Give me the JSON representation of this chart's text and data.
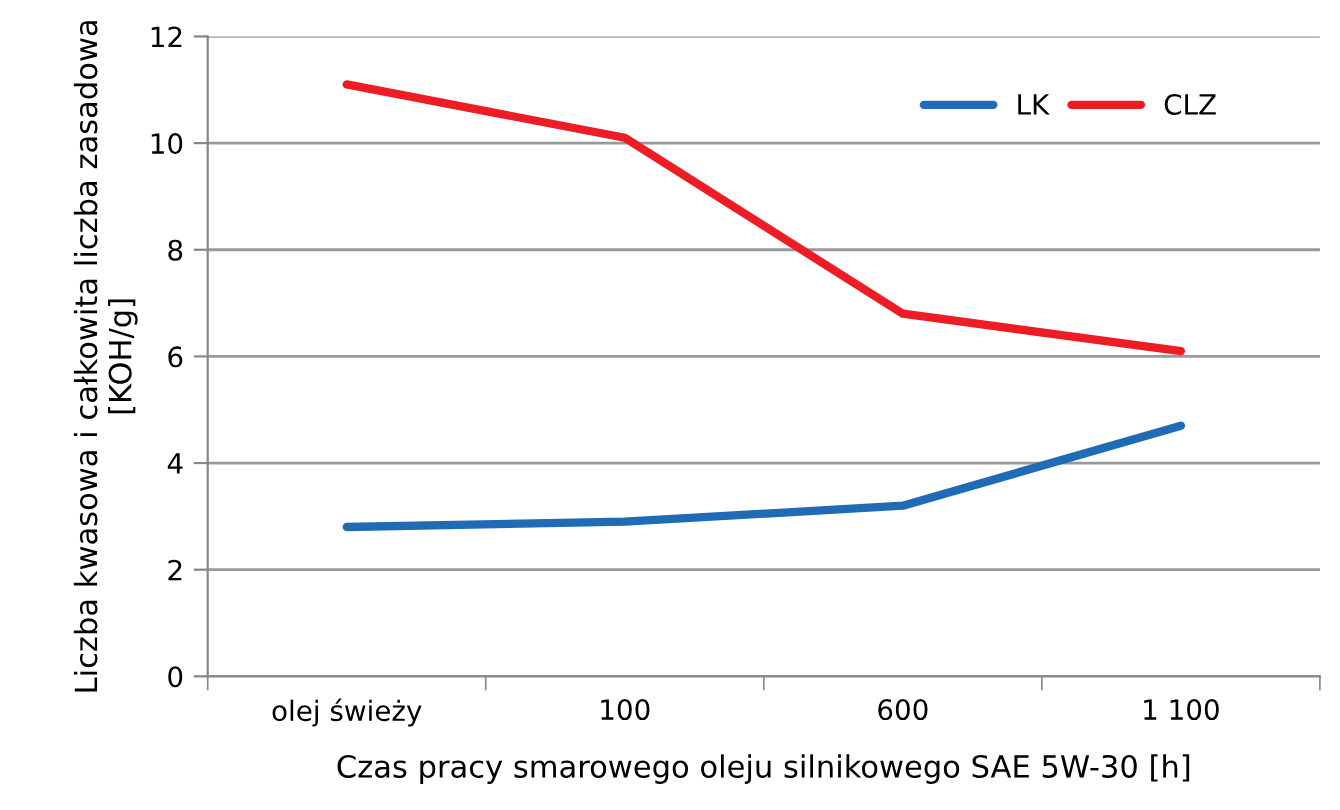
{
  "chart_data": {
    "type": "line",
    "xlabel": "Czas pracy smarowego oleju silnikowego SAE 5W-30 [h]",
    "ylabel": "Liczba kwasowa i całkowita liczba zasadowa [KOH/g]",
    "categories": [
      "olej świeży",
      "100",
      "600",
      "1 100"
    ],
    "series": [
      {
        "name": "LK",
        "color": "#1f6bb5",
        "values": [
          2.8,
          2.9,
          3.2,
          4.7
        ]
      },
      {
        "name": "CLZ",
        "color": "#ee1c25",
        "values": [
          11.1,
          10.1,
          6.8,
          6.1
        ]
      }
    ],
    "ylim": [
      0,
      12
    ],
    "yticks": [
      0,
      2,
      4,
      6,
      8,
      10,
      12
    ],
    "grid": "y",
    "legend": "top right",
    "marker": "none",
    "line_style": "solid"
  }
}
